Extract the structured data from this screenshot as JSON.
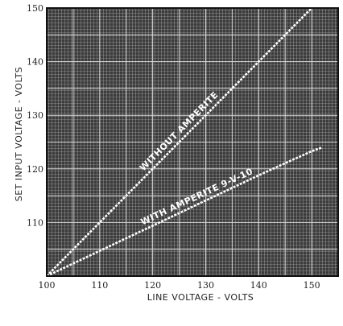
{
  "chart_data": {
    "type": "line",
    "title": "",
    "xlabel": "LINE VOLTAGE - VOLTS",
    "ylabel": "SET INPUT VOLTAGE - VOLTS",
    "xlim": [
      100,
      155
    ],
    "ylim": [
      100,
      150
    ],
    "grid": true,
    "plot_background": "#3c3c3c",
    "grid_color": "#d8d8d8",
    "x_ticks": [
      {
        "value": 100,
        "label": "100"
      },
      {
        "value": 110,
        "label": "110"
      },
      {
        "value": 120,
        "label": "120"
      },
      {
        "value": 130,
        "label": "130"
      },
      {
        "value": 140,
        "label": "140"
      },
      {
        "value": 150,
        "label": "150"
      }
    ],
    "y_ticks": [
      {
        "value": 110,
        "label": "110"
      },
      {
        "value": 120,
        "label": "120"
      },
      {
        "value": 130,
        "label": "130"
      },
      {
        "value": 140,
        "label": "140"
      },
      {
        "value": 150,
        "label": "150"
      }
    ],
    "series": [
      {
        "name": "WITHOUT AMPERITE",
        "color": "#ffffff",
        "x": [
          100,
          150
        ],
        "y": [
          100,
          150
        ]
      },
      {
        "name": "WITH AMPERITE 9-V-10",
        "color": "#ffffff",
        "x": [
          100,
          110,
          120,
          130,
          140,
          150,
          152
        ],
        "y": [
          100,
          104.7,
          109.4,
          114.1,
          118.8,
          123.3,
          124
        ]
      }
    ]
  }
}
